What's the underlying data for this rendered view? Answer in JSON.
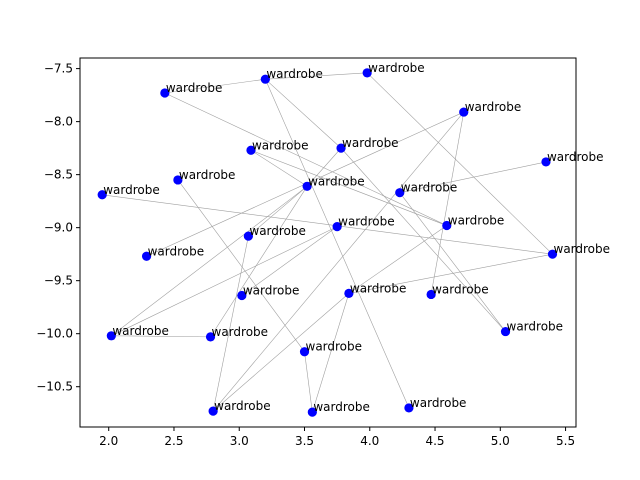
{
  "chart_data": {
    "type": "scatter",
    "title": "",
    "xlabel": "",
    "ylabel": "",
    "xlim": [
      1.78,
      5.58
    ],
    "ylim": [
      -10.88,
      -7.4
    ],
    "xticks": [
      2.0,
      2.5,
      3.0,
      3.5,
      4.0,
      4.5,
      5.0,
      5.5
    ],
    "yticks": [
      -10.5,
      -10.0,
      -9.5,
      -9.0,
      -8.5,
      -8.0,
      -7.5
    ],
    "xtick_labels": [
      "2.0",
      "2.5",
      "3.0",
      "3.5",
      "4.0",
      "4.5",
      "5.0",
      "5.5"
    ],
    "ytick_labels": [
      "−10.5",
      "−10.0",
      "−9.5",
      "−9.0",
      "−8.5",
      "−8.0",
      "−7.5"
    ],
    "grid": false,
    "point_color": "#0000ff",
    "edge_color": "#a0a0a0",
    "points": [
      {
        "x": 1.95,
        "y": -8.69,
        "label": "wardrobe"
      },
      {
        "x": 2.02,
        "y": -10.02,
        "label": "wardrobe"
      },
      {
        "x": 2.29,
        "y": -9.27,
        "label": "wardrobe"
      },
      {
        "x": 2.43,
        "y": -7.73,
        "label": "wardrobe"
      },
      {
        "x": 2.53,
        "y": -8.55,
        "label": "wardrobe"
      },
      {
        "x": 2.78,
        "y": -10.03,
        "label": "wardrobe"
      },
      {
        "x": 2.8,
        "y": -10.73,
        "label": "wardrobe"
      },
      {
        "x": 3.02,
        "y": -9.64,
        "label": "wardrobe"
      },
      {
        "x": 3.07,
        "y": -9.08,
        "label": "wardrobe"
      },
      {
        "x": 3.09,
        "y": -8.27,
        "label": "wardrobe"
      },
      {
        "x": 3.2,
        "y": -7.6,
        "label": "wardrobe"
      },
      {
        "x": 3.5,
        "y": -10.17,
        "label": "wardrobe"
      },
      {
        "x": 3.52,
        "y": -8.61,
        "label": "wardrobe"
      },
      {
        "x": 3.56,
        "y": -10.74,
        "label": "wardrobe"
      },
      {
        "x": 3.75,
        "y": -8.99,
        "label": "wardrobe"
      },
      {
        "x": 3.78,
        "y": -8.25,
        "label": "wardrobe"
      },
      {
        "x": 3.84,
        "y": -9.62,
        "label": "wardrobe"
      },
      {
        "x": 3.98,
        "y": -7.54,
        "label": "wardrobe"
      },
      {
        "x": 4.23,
        "y": -8.67,
        "label": "wardrobe"
      },
      {
        "x": 4.3,
        "y": -10.7,
        "label": "wardrobe"
      },
      {
        "x": 4.47,
        "y": -9.63,
        "label": "wardrobe"
      },
      {
        "x": 4.59,
        "y": -8.98,
        "label": "wardrobe"
      },
      {
        "x": 4.72,
        "y": -7.91,
        "label": "wardrobe"
      },
      {
        "x": 5.04,
        "y": -9.98,
        "label": "wardrobe"
      },
      {
        "x": 5.35,
        "y": -8.38,
        "label": "wardrobe"
      },
      {
        "x": 5.4,
        "y": -9.25,
        "label": "wardrobe"
      }
    ],
    "edges": [
      [
        3,
        10
      ],
      [
        10,
        17
      ],
      [
        10,
        15
      ],
      [
        10,
        19
      ],
      [
        17,
        25
      ],
      [
        3,
        21
      ],
      [
        0,
        25
      ],
      [
        22,
        6
      ],
      [
        2,
        22
      ],
      [
        9,
        12
      ],
      [
        12,
        15
      ],
      [
        12,
        1
      ],
      [
        12,
        5
      ],
      [
        9,
        21
      ],
      [
        18,
        24
      ],
      [
        4,
        11
      ],
      [
        8,
        6
      ],
      [
        8,
        12
      ],
      [
        7,
        14
      ],
      [
        14,
        1
      ],
      [
        5,
        1
      ],
      [
        16,
        25
      ],
      [
        16,
        21
      ],
      [
        16,
        13
      ],
      [
        16,
        6
      ],
      [
        11,
        13
      ],
      [
        20,
        22
      ],
      [
        18,
        23
      ],
      [
        15,
        23
      ]
    ]
  }
}
